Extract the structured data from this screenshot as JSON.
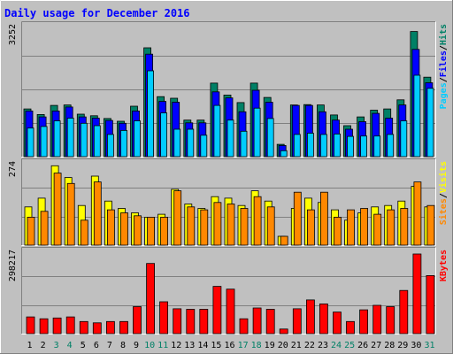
{
  "chart_data": [
    {
      "type": "bar",
      "title": "Daily usage for December 2016",
      "ymax_label": "3252",
      "axis_label_parts": [
        {
          "text": "Pages",
          "color": "#00ccff"
        },
        {
          "text": "/",
          "color": "#000000"
        },
        {
          "text": "Files",
          "color": "#0000ff"
        },
        {
          "text": "/",
          "color": "#000000"
        },
        {
          "text": "Hits",
          "color": "#008066"
        }
      ],
      "ylim": [
        0,
        3252
      ],
      "grid": true,
      "categories": [
        "1",
        "2",
        "3",
        "4",
        "5",
        "6",
        "7",
        "8",
        "9",
        "10",
        "11",
        "12",
        "13",
        "14",
        "15",
        "16",
        "17",
        "18",
        "19",
        "20",
        "21",
        "22",
        "23",
        "24",
        "25",
        "26",
        "27",
        "28",
        "29",
        "30",
        "31"
      ],
      "series": [
        {
          "name": "Hits",
          "color": "#008066",
          "values": [
            1200,
            1060,
            1290,
            1300,
            1070,
            1030,
            960,
            890,
            1270,
            2740,
            1510,
            1470,
            920,
            920,
            1850,
            1550,
            1360,
            1850,
            1490,
            310,
            1300,
            1310,
            1300,
            1050,
            780,
            1000,
            1170,
            1200,
            1430,
            3150,
            2000
          ]
        },
        {
          "name": "Files",
          "color": "#0000ff",
          "values": [
            1150,
            1000,
            1150,
            1250,
            1000,
            970,
            910,
            840,
            1150,
            2580,
            1390,
            1370,
            850,
            850,
            1630,
            1480,
            1130,
            1670,
            1370,
            280,
            1290,
            1290,
            1130,
            920,
            690,
            880,
            1090,
            970,
            1300,
            2700,
            1860
          ]
        },
        {
          "name": "Pages",
          "color": "#00ccff",
          "values": [
            720,
            760,
            900,
            970,
            840,
            780,
            560,
            660,
            900,
            2160,
            1100,
            690,
            690,
            540,
            1290,
            920,
            640,
            1220,
            960,
            150,
            560,
            590,
            560,
            570,
            510,
            520,
            520,
            560,
            900,
            2050,
            1720
          ]
        }
      ]
    },
    {
      "type": "bar",
      "ymax_label": "274",
      "axis_label_parts": [
        {
          "text": "Sites",
          "color": "#ff8800"
        },
        {
          "text": "/",
          "color": "#000000"
        },
        {
          "text": "Visits",
          "color": "#ffff00"
        }
      ],
      "ylim": [
        0,
        274
      ],
      "grid": true,
      "categories": [
        "1",
        "2",
        "3",
        "4",
        "5",
        "6",
        "7",
        "8",
        "9",
        "10",
        "11",
        "12",
        "13",
        "14",
        "15",
        "16",
        "17",
        "18",
        "19",
        "20",
        "21",
        "22",
        "23",
        "24",
        "25",
        "26",
        "27",
        "28",
        "29",
        "30",
        "31"
      ],
      "series": [
        {
          "name": "Visits",
          "color": "#ffff00",
          "values": [
            130,
            160,
            270,
            230,
            135,
            235,
            150,
            125,
            110,
            95,
            105,
            190,
            140,
            125,
            165,
            160,
            135,
            185,
            150,
            30,
            125,
            160,
            145,
            120,
            85,
            110,
            130,
            135,
            150,
            200,
            130
          ]
        },
        {
          "name": "Sites",
          "color": "#ff8800",
          "values": [
            95,
            115,
            245,
            210,
            85,
            215,
            120,
            110,
            100,
            95,
            95,
            185,
            130,
            120,
            145,
            140,
            125,
            165,
            130,
            30,
            180,
            120,
            180,
            95,
            120,
            125,
            105,
            120,
            125,
            215,
            135
          ]
        }
      ]
    },
    {
      "type": "bar",
      "ymax_label": "298217",
      "axis_label_parts": [
        {
          "text": "KBytes",
          "color": "#ff0000"
        }
      ],
      "ylim": [
        0,
        298217
      ],
      "grid": true,
      "categories": [
        "1",
        "2",
        "3",
        "4",
        "5",
        "6",
        "7",
        "8",
        "9",
        "10",
        "11",
        "12",
        "13",
        "14",
        "15",
        "16",
        "17",
        "18",
        "19",
        "20",
        "21",
        "22",
        "23",
        "24",
        "25",
        "26",
        "27",
        "28",
        "29",
        "30",
        "31"
      ],
      "series": [
        {
          "name": "KBytes",
          "color": "#ff0000",
          "values": [
            62000,
            55000,
            58000,
            62000,
            45000,
            40000,
            45000,
            45000,
            100000,
            260000,
            118000,
            92000,
            90000,
            90000,
            175000,
            165000,
            55000,
            95000,
            90000,
            17000,
            92000,
            125000,
            110000,
            80000,
            45000,
            88000,
            105000,
            100000,
            160000,
            295000,
            215000
          ]
        }
      ]
    }
  ],
  "x_label_colors": [
    "#000000",
    "#000000",
    "#008066",
    "#008066",
    "#000000",
    "#000000",
    "#000000",
    "#000000",
    "#000000",
    "#008066",
    "#008066",
    "#000000",
    "#000000",
    "#000000",
    "#000000",
    "#000000",
    "#008066",
    "#008066",
    "#000000",
    "#000000",
    "#000000",
    "#000000",
    "#000000",
    "#008066",
    "#008066",
    "#000000",
    "#000000",
    "#000000",
    "#000000",
    "#000000",
    "#008066"
  ]
}
